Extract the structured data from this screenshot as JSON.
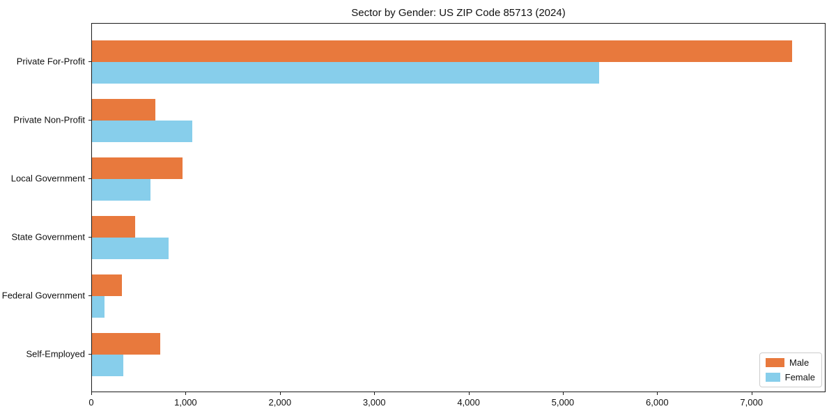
{
  "title": "Sector by Gender: US ZIP Code 85713 (2024)",
  "chart_data": {
    "type": "bar",
    "orientation": "horizontal",
    "title": "Sector by Gender: US ZIP Code 85713 (2024)",
    "xlabel": "",
    "ylabel": "",
    "categories": [
      "Private For-Profit",
      "Private Non-Profit",
      "Local Government",
      "State Government",
      "Federal Government",
      "Self-Employed"
    ],
    "series": [
      {
        "name": "Male",
        "color": "#E8793D",
        "values": [
          7420,
          670,
          960,
          460,
          320,
          720
        ]
      },
      {
        "name": "Female",
        "color": "#87CEEB",
        "values": [
          5380,
          1060,
          620,
          810,
          130,
          330
        ]
      }
    ],
    "xlim": [
      0,
      7785
    ],
    "xticks": [
      0,
      1000,
      2000,
      3000,
      4000,
      5000,
      6000,
      7000
    ],
    "xtick_labels": [
      "0",
      "1,000",
      "2,000",
      "3,000",
      "4,000",
      "5,000",
      "6,000",
      "7,000"
    ],
    "grid": false,
    "legend": {
      "position": "lower right",
      "entries": [
        "Male",
        "Female"
      ]
    },
    "colors": {
      "axis": "#1a1a1a",
      "background": "#ffffff"
    }
  }
}
